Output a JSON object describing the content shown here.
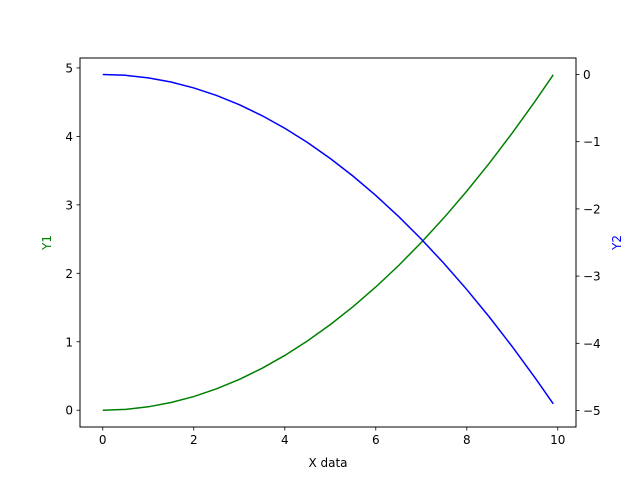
{
  "chart_data": {
    "type": "line",
    "title": "",
    "xlabel": "X data",
    "ylabel_left": "Y1",
    "ylabel_right": "Y2",
    "xlim": [
      -0.5,
      10.4
    ],
    "ylim_left": [
      -0.245,
      5.145
    ],
    "ylim_right": [
      -5.245,
      0.245
    ],
    "grid": false,
    "x_ticks": [
      0,
      2,
      4,
      6,
      8,
      10
    ],
    "x_tick_labels": [
      "0",
      "2",
      "4",
      "6",
      "8",
      "10"
    ],
    "y_left_ticks": [
      0,
      1,
      2,
      3,
      4,
      5
    ],
    "y_left_tick_labels": [
      "0",
      "1",
      "2",
      "3",
      "4",
      "5"
    ],
    "y_right_ticks": [
      0,
      -1,
      -2,
      -3,
      -4,
      -5
    ],
    "y_right_tick_labels": [
      "0",
      "−1",
      "−2",
      "−3",
      "−4",
      "−5"
    ],
    "series": [
      {
        "name": "Y1",
        "axis": "left",
        "color": "#008000",
        "x": [
          0,
          0.5,
          1,
          1.5,
          2,
          2.5,
          3,
          3.5,
          4,
          4.5,
          5,
          5.5,
          6,
          6.5,
          7,
          7.5,
          8,
          8.5,
          9,
          9.5,
          9.9
        ],
        "y": [
          0,
          0.0125,
          0.05,
          0.1125,
          0.2,
          0.3125,
          0.45,
          0.6125,
          0.8,
          1.0125,
          1.25,
          1.5125,
          1.8,
          2.1125,
          2.45,
          2.8125,
          3.2,
          3.6125,
          4.05,
          4.5125,
          4.9
        ]
      },
      {
        "name": "Y2",
        "axis": "right",
        "color": "#0000ff",
        "x": [
          0,
          0.5,
          1,
          1.5,
          2,
          2.5,
          3,
          3.5,
          4,
          4.5,
          5,
          5.5,
          6,
          6.5,
          7,
          7.5,
          8,
          8.5,
          9,
          9.5,
          9.9
        ],
        "y": [
          0,
          -0.0125,
          -0.05,
          -0.1125,
          -0.2,
          -0.3125,
          -0.45,
          -0.6125,
          -0.8,
          -1.0125,
          -1.25,
          -1.5125,
          -1.8,
          -2.1125,
          -2.45,
          -2.8125,
          -3.2,
          -3.6125,
          -4.05,
          -4.5125,
          -4.9
        ]
      }
    ]
  }
}
